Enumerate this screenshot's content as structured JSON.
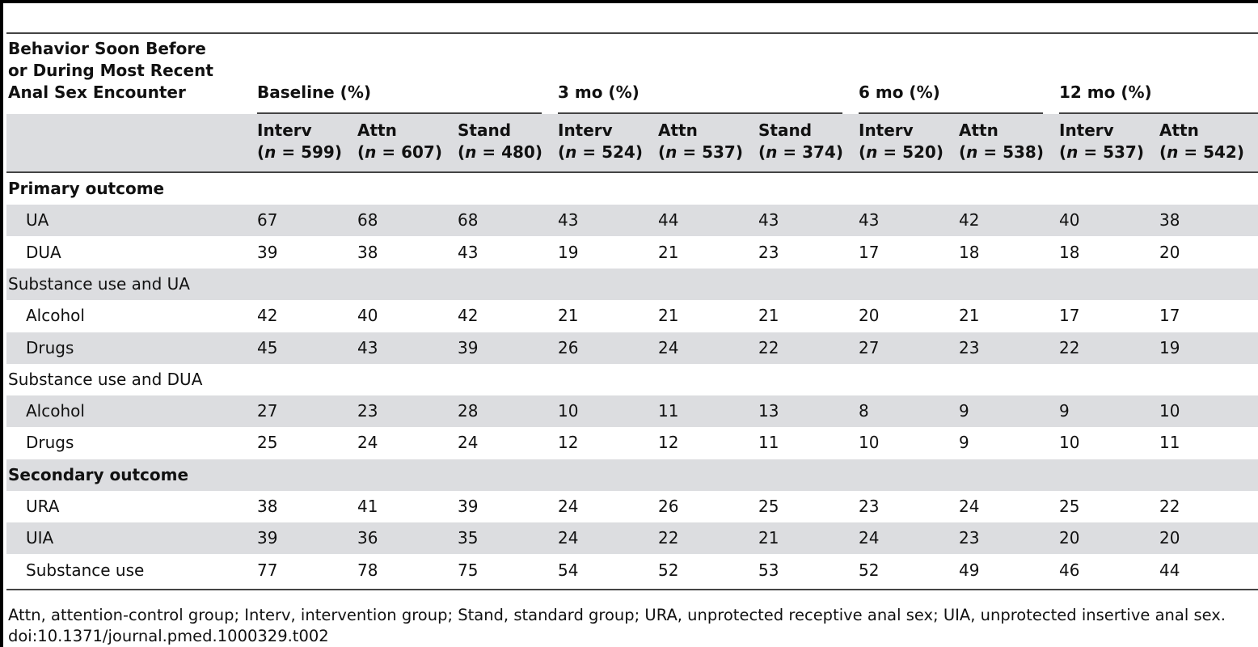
{
  "table": {
    "stub_header": [
      "Behavior Soon Before",
      "or During Most Recent",
      "Anal Sex Encounter"
    ],
    "groups": [
      "Baseline (%)",
      "3 mo (%)",
      "6 mo (%)",
      "12 mo (%)"
    ],
    "columns": [
      {
        "arm": "Interv",
        "n": "599"
      },
      {
        "arm": "Attn",
        "n": "607"
      },
      {
        "arm": "Stand",
        "n": "480"
      },
      {
        "arm": "Interv",
        "n": "524"
      },
      {
        "arm": "Attn",
        "n": "537"
      },
      {
        "arm": "Stand",
        "n": "374"
      },
      {
        "arm": "Interv",
        "n": "520"
      },
      {
        "arm": "Attn",
        "n": "538"
      },
      {
        "arm": "Interv",
        "n": "537"
      },
      {
        "arm": "Attn",
        "n": "542"
      }
    ],
    "rows": [
      {
        "label": "Primary outcome",
        "style": "section",
        "values": []
      },
      {
        "label": "UA",
        "style": "item",
        "values": [
          "67",
          "68",
          "68",
          "43",
          "44",
          "43",
          "43",
          "42",
          "40",
          "38"
        ]
      },
      {
        "label": "DUA",
        "style": "item",
        "values": [
          "39",
          "38",
          "43",
          "19",
          "21",
          "23",
          "17",
          "18",
          "18",
          "20"
        ]
      },
      {
        "label": "Substance use and UA",
        "style": "subsection",
        "values": []
      },
      {
        "label": "Alcohol",
        "style": "item",
        "values": [
          "42",
          "40",
          "42",
          "21",
          "21",
          "21",
          "20",
          "21",
          "17",
          "17"
        ]
      },
      {
        "label": "Drugs",
        "style": "item",
        "values": [
          "45",
          "43",
          "39",
          "26",
          "24",
          "22",
          "27",
          "23",
          "22",
          "19"
        ]
      },
      {
        "label": "Substance use and DUA",
        "style": "subsection",
        "values": []
      },
      {
        "label": "Alcohol",
        "style": "item",
        "values": [
          "27",
          "23",
          "28",
          "10",
          "11",
          "13",
          "8",
          "9",
          "9",
          "10"
        ]
      },
      {
        "label": "Drugs",
        "style": "item",
        "values": [
          "25",
          "24",
          "24",
          "12",
          "12",
          "11",
          "10",
          "9",
          "10",
          "11"
        ]
      },
      {
        "label": "Secondary outcome",
        "style": "section",
        "values": []
      },
      {
        "label": "URA",
        "style": "item",
        "values": [
          "38",
          "41",
          "39",
          "24",
          "26",
          "25",
          "23",
          "24",
          "25",
          "22"
        ]
      },
      {
        "label": "UIA",
        "style": "item",
        "values": [
          "39",
          "36",
          "35",
          "24",
          "22",
          "21",
          "24",
          "23",
          "20",
          "20"
        ]
      },
      {
        "label": "Substance use",
        "style": "item",
        "values": [
          "77",
          "78",
          "75",
          "54",
          "52",
          "53",
          "52",
          "49",
          "46",
          "44"
        ]
      }
    ]
  },
  "footnote": {
    "abbreviations": "Attn, attention-control group; Interv, intervention group; Stand, standard group; URA, unprotected receptive anal sex; UIA, unprotected insertive anal sex.",
    "doi": "doi:10.1371/journal.pmed.1000329.t002"
  },
  "colors": {
    "band": "#dcdde0",
    "rule": "#444444"
  }
}
